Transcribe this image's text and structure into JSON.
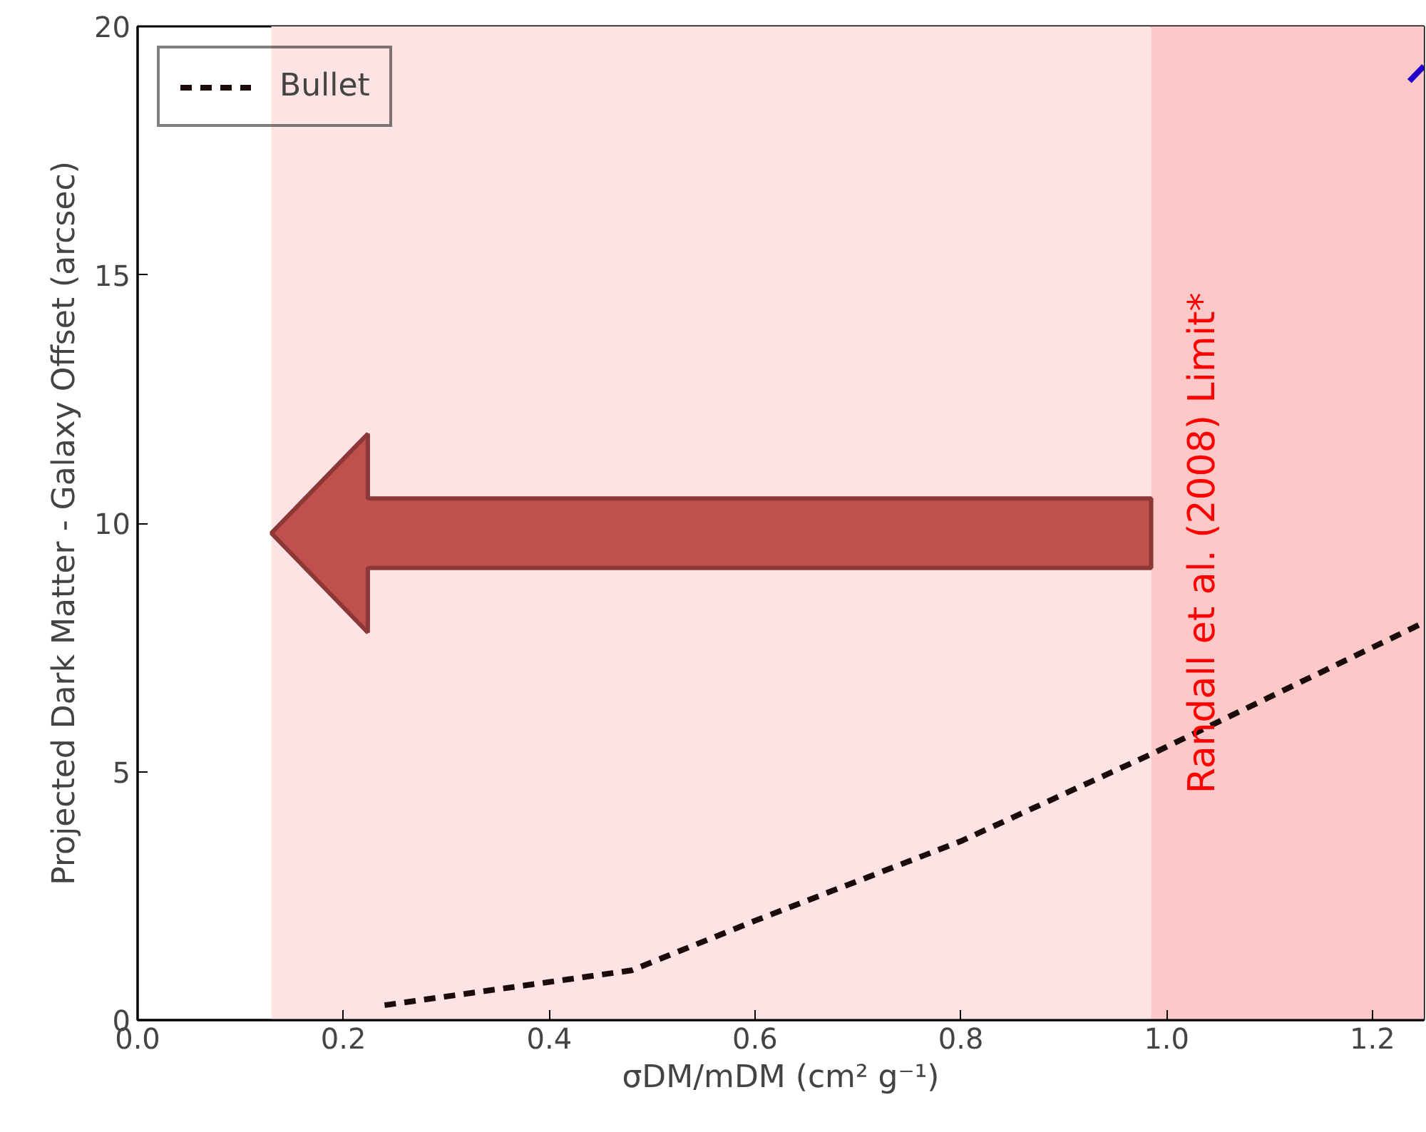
{
  "chart_data": {
    "type": "line",
    "xlabel": "σDM/mDM (cm² g⁻¹)",
    "ylabel": "Projected Dark Matter - Galaxy Offset (arcsec)",
    "xlim": [
      0,
      1.25
    ],
    "ylim": [
      0,
      20
    ],
    "xticks": [
      {
        "value": 0,
        "label": "0.0"
      },
      0.2,
      0.4,
      0.6,
      0.8,
      {
        "value": 1,
        "label": "1.0"
      },
      1.2
    ],
    "yticks": [
      0,
      5,
      10,
      15,
      20
    ],
    "series": [
      {
        "name": "Bullet",
        "color": "#1a0a0a",
        "line_style": "dashed",
        "x": [
          0.24,
          0.48,
          0.6,
          0.8,
          0.99,
          1.25
        ],
        "values": [
          0.3,
          1.0,
          2.0,
          3.6,
          5.4,
          8.0
        ]
      },
      {
        "color": "#2200cc",
        "line_style": "solid",
        "x": [
          1.236,
          1.25
        ],
        "values": [
          18.9,
          19.2
        ]
      }
    ],
    "bands": [
      {
        "axis": "x",
        "from": 0.13,
        "to": 0.985,
        "color": "#fde3e3"
      },
      {
        "axis": "x",
        "from": 0.985,
        "to": 1.25,
        "color": "#fcc8c8",
        "label": "Randall et al. (2008) Limit*"
      }
    ],
    "grid": false,
    "legend": "top left"
  }
}
